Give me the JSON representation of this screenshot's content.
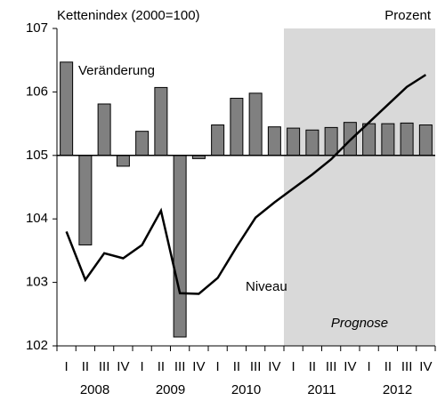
{
  "chart_data": {
    "type": "bar-line",
    "y_label": "Kettenindex (2000=100)",
    "y2_label": "Prozent",
    "categories": [
      "I",
      "II",
      "III",
      "IV",
      "I",
      "II",
      "III",
      "IV",
      "I",
      "II",
      "III",
      "IV",
      "I",
      "II",
      "III",
      "IV",
      "I",
      "II",
      "III",
      "IV"
    ],
    "years": [
      "2008",
      "2009",
      "2010",
      "2011",
      "2012"
    ],
    "series": [
      {
        "name": "Veränderung",
        "type": "bar",
        "axis": "y2",
        "color": "#808080",
        "values": [
          1.47,
          -1.41,
          0.81,
          -0.17,
          0.38,
          1.07,
          -2.86,
          -0.05,
          0.48,
          0.9,
          0.98,
          0.45,
          0.43,
          0.4,
          0.44,
          0.52,
          0.5,
          0.5,
          0.51,
          0.48
        ]
      },
      {
        "name": "Niveau",
        "type": "line",
        "color": "#000000",
        "values": [
          103.8,
          103.04,
          103.46,
          103.38,
          103.59,
          104.13,
          102.83,
          102.82,
          103.07,
          103.56,
          104.02,
          104.26,
          104.48,
          104.7,
          104.94,
          105.24,
          105.52,
          105.8,
          106.08,
          106.27
        ]
      }
    ],
    "ylim": [
      102,
      107
    ],
    "yticks": [
      102,
      103,
      104,
      105,
      106,
      107
    ],
    "y2lim": [
      -3,
      2
    ],
    "forecast_label": "Prognose",
    "forecast_start": 12,
    "forecast_color": "#d9d9d9"
  }
}
